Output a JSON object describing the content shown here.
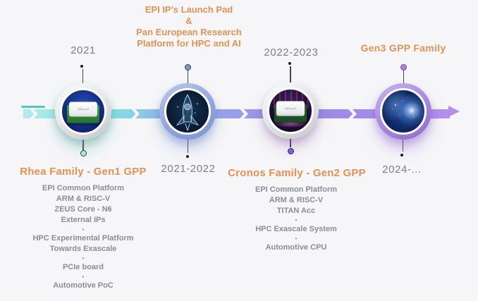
{
  "colors": {
    "accent_orange": "#e39254",
    "text_gray": "#7b7f86",
    "band_teal": "#84e1de",
    "band_blue": "#97a5ec",
    "band_purple": "#b490ef"
  },
  "timeline": {
    "nodes": [
      {
        "id": "rhea",
        "top_label": "2021",
        "title": "Rhea Family - Gen1 GPP",
        "chip_label": "SiPearl",
        "details": [
          "EPI Common Platform",
          "ARM & RISC-V",
          "ZEUS Core - N6",
          "External IPs",
          "•",
          "HPC Experimental Platform",
          "Towards Exascale",
          "•",
          "PCIe board",
          "•",
          "Automotive PoC"
        ]
      },
      {
        "id": "launch-pad",
        "top_title_lines": [
          "EPI IP’s Launch Pad",
          "&",
          "Pan European Research",
          "Platform for HPC and AI"
        ],
        "bottom_label": "2021-2022"
      },
      {
        "id": "cronos",
        "top_label": "2022-2023",
        "title": "Cronos Family - Gen2 GPP",
        "chip_label": "SiPearl",
        "details": [
          "EPI Common Platform",
          "ARM & RISC-V",
          "TITAN Acc",
          "•",
          "HPC Exascale System",
          "•",
          "Automotive CPU"
        ]
      },
      {
        "id": "gen3",
        "top_title": "Gen3 GPP Family",
        "bottom_label": "2024-..."
      }
    ]
  }
}
